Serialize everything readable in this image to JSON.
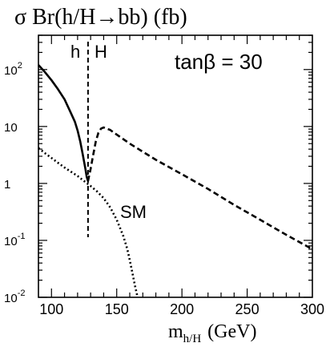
{
  "chart_data": {
    "type": "line",
    "title": "σ Br(h/H→bb)  (fb)",
    "xlabel": "m",
    "xlabel_sub": "h/H",
    "xlabel_unit": "(GeV)",
    "annotations": {
      "tanbeta": "tanβ = 30",
      "h_label": "h",
      "H_label": "H",
      "sm_label": "SM"
    },
    "x_ticks": [
      "100",
      "150",
      "200",
      "250",
      "300"
    ],
    "x_tick_values": [
      100,
      150,
      200,
      250,
      300
    ],
    "y_ticks": [
      {
        "value": 100,
        "base": "10",
        "exp": "2"
      },
      {
        "value": 10,
        "base": "10",
        "exp": ""
      },
      {
        "value": 1,
        "base": "1",
        "exp": ""
      },
      {
        "value": 0.1,
        "base": "10",
        "exp": "-1"
      },
      {
        "value": 0.01,
        "base": "10",
        "exp": "-2"
      }
    ],
    "xlim": [
      90,
      300
    ],
    "ylim": [
      0.01,
      400
    ],
    "yscale": "log",
    "grid": false,
    "threshold_x": 128,
    "series": [
      {
        "name": "h",
        "style": "solid",
        "x": [
          90,
          95,
          100,
          105,
          110,
          115,
          118,
          120,
          122,
          124,
          126,
          127,
          128
        ],
        "y": [
          120,
          90,
          65,
          45,
          30,
          17,
          12,
          8.5,
          5.5,
          3.2,
          1.8,
          1.3,
          1.1
        ]
      },
      {
        "name": "H",
        "style": "dashed",
        "x": [
          128,
          130,
          132,
          134,
          136,
          138,
          140,
          145,
          150,
          160,
          170,
          180,
          200,
          220,
          240,
          260,
          280,
          300
        ],
        "y": [
          1.1,
          1.8,
          3.2,
          5.5,
          7.8,
          9.2,
          9.6,
          8.7,
          7.2,
          5.0,
          3.6,
          2.6,
          1.45,
          0.8,
          0.42,
          0.23,
          0.125,
          0.07
        ]
      },
      {
        "name": "SM",
        "style": "dotted",
        "x": [
          90,
          95,
          100,
          105,
          110,
          115,
          120,
          125,
          130,
          135,
          140,
          145,
          150,
          155,
          158,
          160,
          162,
          164,
          166
        ],
        "y": [
          4.2,
          3.4,
          2.8,
          2.3,
          1.9,
          1.6,
          1.35,
          1.1,
          0.9,
          0.72,
          0.55,
          0.38,
          0.23,
          0.12,
          0.072,
          0.045,
          0.027,
          0.016,
          0.01
        ]
      }
    ]
  }
}
